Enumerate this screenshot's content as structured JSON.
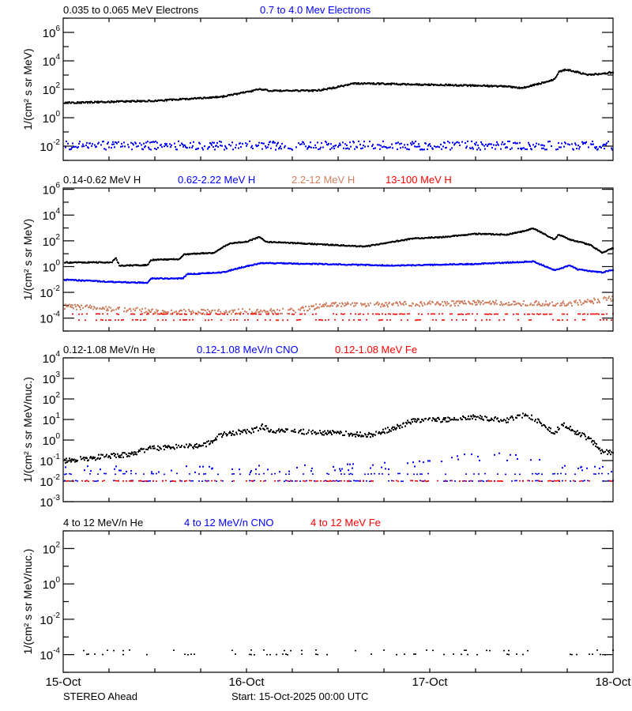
{
  "chart_data": [
    {
      "type": "scatter",
      "yscale": "log",
      "ylabel": "1/(cm² s sr MeV)",
      "ylim": [
        0.001,
        10000000
      ],
      "ytick_exponents": [
        6,
        4,
        2,
        0,
        -2
      ],
      "series": [
        {
          "name": "0.035 to 0.065 MeV Electrons",
          "color": "#000000",
          "points": [
            [
              "2025-10-15T00:00",
              11
            ],
            [
              "2025-10-15T12:30",
              16
            ],
            [
              "2025-10-15T20:40",
              30
            ],
            [
              "2025-10-16T01:40",
              100
            ],
            [
              "2025-10-16T02:50",
              80
            ],
            [
              "2025-10-16T09:00",
              80
            ],
            [
              "2025-10-16T11:10",
              125
            ],
            [
              "2025-10-16T13:50",
              250
            ],
            [
              "2025-10-16T16:20",
              250
            ],
            [
              "2025-10-17T01:40",
              200
            ],
            [
              "2025-10-17T09:50",
              160
            ],
            [
              "2025-10-17T12:00",
              125
            ],
            [
              "2025-10-17T14:10",
              250
            ],
            [
              "2025-10-17T16:10",
              500
            ],
            [
              "2025-10-17T16:40",
              1600
            ],
            [
              "2025-10-17T17:40",
              2500
            ],
            [
              "2025-10-17T19:10",
              1600
            ],
            [
              "2025-10-17T20:30",
              1000
            ],
            [
              "2025-10-17T22:20",
              1250
            ],
            [
              "2025-10-18T00:00",
              1600
            ]
          ]
        },
        {
          "name": "0.7 to 4.0 Mev Electrons",
          "color": "#0000ff",
          "points": [
            [
              "2025-10-15T00:00",
              0.011
            ],
            [
              "2025-10-18T00:00",
              0.011
            ]
          ]
        }
      ]
    },
    {
      "type": "scatter",
      "yscale": "log",
      "ylabel": "1/(cm² s sr MeV)",
      "ylim": [
        1e-05,
        1260000
      ],
      "ytick_exponents": [
        6,
        4,
        2,
        0,
        -2,
        -4
      ],
      "series": [
        {
          "name": "0.14-0.62 MeV H",
          "color": "#000000",
          "points": [
            [
              "2025-10-15T00:00",
              2.1
            ],
            [
              "2025-10-15T06:10",
              2.1
            ],
            [
              "2025-10-15T06:40",
              5
            ],
            [
              "2025-10-15T07:10",
              1.2
            ],
            [
              "2025-10-15T10:50",
              1.3
            ],
            [
              "2025-10-15T11:20",
              3.3
            ],
            [
              "2025-10-15T15:00",
              3.8
            ],
            [
              "2025-10-15T15:40",
              9
            ],
            [
              "2025-10-15T19:40",
              12
            ],
            [
              "2025-10-15T20:30",
              28
            ],
            [
              "2025-10-15T21:40",
              63
            ],
            [
              "2025-10-15T23:50",
              85
            ],
            [
              "2025-10-16T01:30",
              200
            ],
            [
              "2025-10-16T02:20",
              85
            ],
            [
              "2025-10-16T09:00",
              55
            ],
            [
              "2025-10-16T15:20",
              36
            ],
            [
              "2025-10-16T21:30",
              150
            ],
            [
              "2025-10-17T01:40",
              200
            ],
            [
              "2025-10-17T05:50",
              350
            ],
            [
              "2025-10-17T09:50",
              300
            ],
            [
              "2025-10-17T12:00",
              550
            ],
            [
              "2025-10-17T13:20",
              950
            ],
            [
              "2025-10-17T16:10",
              125
            ],
            [
              "2025-10-17T16:40",
              320
            ],
            [
              "2025-10-17T18:10",
              125
            ],
            [
              "2025-10-17T20:50",
              48
            ],
            [
              "2025-10-17T22:20",
              12
            ],
            [
              "2025-10-18T00:00",
              30
            ]
          ]
        },
        {
          "name": "0.62-2.22 MeV H",
          "color": "#0000ff",
          "points": [
            [
              "2025-10-15T00:00",
              0.095
            ],
            [
              "2025-10-15T06:40",
              0.063
            ],
            [
              "2025-10-15T10:50",
              0.055
            ],
            [
              "2025-10-15T11:20",
              0.12
            ],
            [
              "2025-10-15T15:30",
              0.12
            ],
            [
              "2025-10-15T16:00",
              0.26
            ],
            [
              "2025-10-15T20:40",
              0.35
            ],
            [
              "2025-10-15T22:50",
              0.8
            ],
            [
              "2025-10-16T01:50",
              1.9
            ],
            [
              "2025-10-16T09:00",
              1.6
            ],
            [
              "2025-10-16T19:20",
              1.2
            ],
            [
              "2025-10-17T05:50",
              1.6
            ],
            [
              "2025-10-17T13:20",
              2.5
            ],
            [
              "2025-10-17T16:10",
              0.52
            ],
            [
              "2025-10-17T18:10",
              1.2
            ],
            [
              "2025-10-17T19:10",
              0.6
            ],
            [
              "2025-10-17T22:20",
              0.35
            ],
            [
              "2025-10-18T00:00",
              0.6
            ]
          ]
        },
        {
          "name": "2.2-12 MeV H",
          "color": "#d08060",
          "points": [
            [
              "2025-10-15T00:00",
              0.0008
            ],
            [
              "2025-10-15T07:00",
              0.0005
            ],
            [
              "2025-10-15T14:00",
              0.0003
            ],
            [
              "2025-10-16T06:00",
              0.00035
            ],
            [
              "2025-10-16T10:00",
              0.001
            ],
            [
              "2025-10-17T07:00",
              0.0015
            ],
            [
              "2025-10-17T18:00",
              0.0013
            ],
            [
              "2025-10-18T00:00",
              0.0035
            ]
          ]
        },
        {
          "name": "13-100 MeV H",
          "color": "#ff0000",
          "levels": [
            0.0002,
            7e-05
          ]
        }
      ]
    },
    {
      "type": "scatter",
      "yscale": "log",
      "ylabel": "1/(cm² s sr MeV/nuc.)",
      "ylim": [
        0.001,
        10000
      ],
      "ytick_exponents": [
        4,
        3,
        2,
        1,
        0,
        -1,
        -2,
        -3
      ],
      "series": [
        {
          "name": "0.12-1.08 MeV/n He",
          "color": "#000000",
          "points": [
            [
              "2025-10-15T00:00",
              0.1
            ],
            [
              "2025-10-15T08:20",
              0.2
            ],
            [
              "2025-10-15T11:20",
              0.4
            ],
            [
              "2025-10-15T16:40",
              0.5
            ],
            [
              "2025-10-15T18:40",
              0.65
            ],
            [
              "2025-10-15T20:40",
              1.9
            ],
            [
              "2025-10-16T00:50",
              2.9
            ],
            [
              "2025-10-16T01:50",
              4.5
            ],
            [
              "2025-10-16T03:00",
              2.9
            ],
            [
              "2025-10-16T09:00",
              2.4
            ],
            [
              "2025-10-16T16:20",
              1.7
            ],
            [
              "2025-10-16T21:30",
              8
            ],
            [
              "2025-10-17T05:50",
              12.6
            ],
            [
              "2025-10-17T09:50",
              9
            ],
            [
              "2025-10-17T12:30",
              18.6
            ],
            [
              "2025-10-17T16:10",
              2.2
            ],
            [
              "2025-10-17T17:10",
              6
            ],
            [
              "2025-10-17T19:10",
              2.2
            ],
            [
              "2025-10-17T20:50",
              1.1
            ],
            [
              "2025-10-17T22:20",
              0.27
            ],
            [
              "2025-10-18T00:00",
              0.25
            ]
          ]
        },
        {
          "name": "0.12-1.08 MeV/n CNO",
          "color": "#0000ff",
          "levels": [
            0.01,
            0.022
          ],
          "points": [
            [
              "2025-10-15T00:00",
              0.04
            ],
            [
              "2025-10-16T06:00",
              0.04
            ],
            [
              "2025-10-16T21:00",
              0.06
            ],
            [
              "2025-10-17T05:00",
              0.15
            ],
            [
              "2025-10-17T14:00",
              0.15
            ],
            [
              "2025-10-17T18:00",
              0.05
            ],
            [
              "2025-10-18T00:00",
              0.03
            ]
          ]
        },
        {
          "name": "0.12-1.08 MeV Fe",
          "color": "#ff0000",
          "levels": [
            0.01
          ]
        }
      ]
    },
    {
      "type": "scatter",
      "yscale": "log",
      "ylabel": "1/(cm² s sr MeV/nuc.)",
      "ylim": [
        1e-05,
        1000
      ],
      "ytick_exponents": [
        2,
        0,
        -2,
        -4
      ],
      "series": [
        {
          "name": "4 to 12 MeV/n He",
          "color": "#000000",
          "levels": [
            0.0001,
            0.00017
          ]
        },
        {
          "name": "4 to 12 MeV/n CNO",
          "color": "#0000ff"
        },
        {
          "name": "4 to 12 MeV Fe",
          "color": "#ff0000"
        }
      ]
    }
  ],
  "xaxis": {
    "xlim": [
      "2025-10-15T00:00",
      "2025-10-18T00:00"
    ],
    "tick_labels": [
      "15-Oct",
      "16-Oct",
      "17-Oct",
      "18-Oct"
    ],
    "minor_tick_hours": 6
  },
  "footer": {
    "spacecraft": "STEREO Ahead",
    "start": "Start: 15-Oct-2025 00:00 UTC"
  }
}
